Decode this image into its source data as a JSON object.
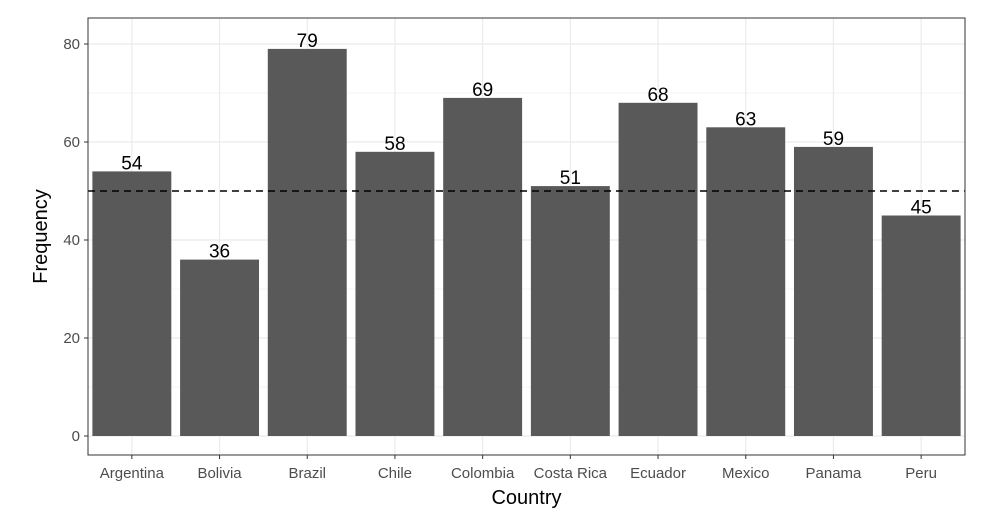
{
  "chart_data": {
    "type": "bar",
    "title": "",
    "xlabel": "Country",
    "ylabel": "Frequency",
    "categories": [
      "Argentina",
      "Bolivia",
      "Brazil",
      "Chile",
      "Colombia",
      "Costa Rica",
      "Ecuador",
      "Mexico",
      "Panama",
      "Peru"
    ],
    "values": [
      54,
      36,
      79,
      58,
      69,
      51,
      68,
      63,
      59,
      45
    ],
    "ylim": [
      0,
      80
    ],
    "yticks": [
      0,
      20,
      40,
      60,
      80
    ],
    "reference_line": {
      "y": 50,
      "style": "dashed",
      "color": "#000000"
    },
    "bar_color": "#595959",
    "grid": true,
    "theme": "bw",
    "legend": "none"
  }
}
